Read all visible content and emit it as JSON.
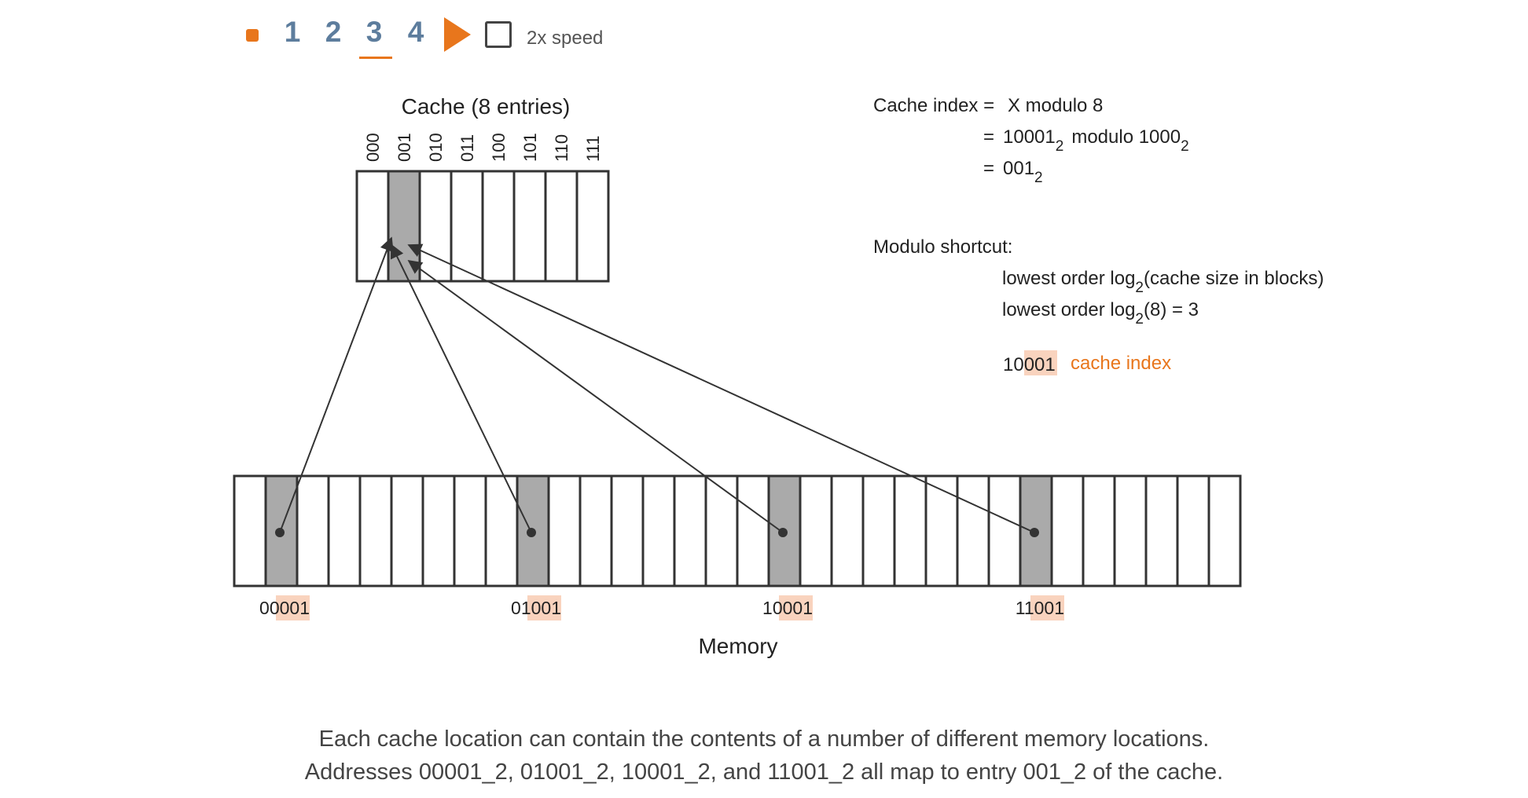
{
  "controls": {
    "steps": [
      "1",
      "2",
      "3",
      "4"
    ],
    "active_step": "3",
    "speed_label": "2x speed",
    "accent_color": "#e8761c"
  },
  "cache": {
    "title": "Cache (8 entries)",
    "indices": [
      "000",
      "001",
      "010",
      "011",
      "100",
      "101",
      "110",
      "111"
    ],
    "highlighted_index": "001"
  },
  "memory": {
    "label": "Memory",
    "block_count": 32,
    "highlighted_blocks": [
      1,
      9,
      17,
      25
    ],
    "addresses": [
      {
        "prefix": "00",
        "suffix": "001"
      },
      {
        "prefix": "01",
        "suffix": "001"
      },
      {
        "prefix": "10",
        "suffix": "001"
      },
      {
        "prefix": "11",
        "suffix": "001"
      }
    ]
  },
  "equations": {
    "line1_label": "Cache index =",
    "line1_value": "X modulo 8",
    "line2_eq": "=",
    "line2_a": "10001",
    "line2_a_sub": "2",
    "line2_mid": "modulo 1000",
    "line2_b_sub": "2",
    "line3_eq": "=",
    "line3_value": "001",
    "line3_sub": "2",
    "shortcut_title": "Modulo shortcut:",
    "shortcut_1_pre": "lowest order log",
    "shortcut_1_sub": "2",
    "shortcut_1_post": "(cache size in blocks)",
    "shortcut_2_pre": "lowest order log",
    "shortcut_2_sub": "2",
    "shortcut_2_post": "(8) = 3",
    "example_prefix": "10",
    "example_suffix": "001",
    "example_label": "cache index"
  },
  "caption": {
    "line1": "Each cache location can contain the contents of a number of different memory locations.",
    "line2": "Addresses 00001_2, 01001_2, 10001_2, and 11001_2 all map to entry 001_2 of the cache."
  },
  "colors": {
    "highlight_cell": "#aaaaaa",
    "address_highlight": "#f9d3be",
    "label_orange": "#e8761c"
  }
}
